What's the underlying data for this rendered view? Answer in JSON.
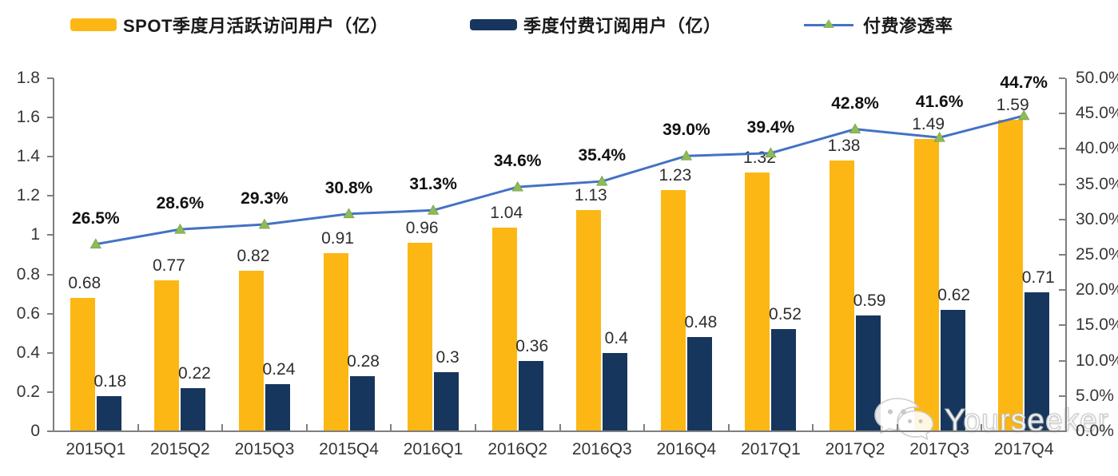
{
  "legend": {
    "items": [
      {
        "label": "SPOT季度月活跃访问用户（亿）",
        "swatch_color": "#FCB714"
      },
      {
        "label": "季度付费订阅用户（亿）",
        "swatch_color": "#17365D"
      },
      {
        "label": "付费渗透率",
        "line_color": "#4472C4",
        "marker_color": "#8FBA58"
      }
    ]
  },
  "watermark": {
    "text": "Yourseeker",
    "icon": "wechat-icon"
  },
  "chart_data": {
    "type": "combo (grouped bar + line)",
    "title": "",
    "legend_position": "top",
    "grid": "off",
    "categories": [
      "2015Q1",
      "2015Q2",
      "2015Q3",
      "2015Q4",
      "2016Q1",
      "2016Q2",
      "2016Q3",
      "2016Q4",
      "2017Q1",
      "2017Q2",
      "2017Q3",
      "2017Q4"
    ],
    "series": [
      {
        "name": "SPOT季度月活跃访问用户（亿）",
        "type": "bar",
        "axis": "left",
        "color": "#FCB714",
        "values": [
          0.68,
          0.77,
          0.82,
          0.91,
          0.96,
          1.04,
          1.13,
          1.23,
          1.32,
          1.38,
          1.49,
          1.59
        ],
        "labels": [
          "0.68",
          "0.77",
          "0.82",
          "0.91",
          "0.96",
          "1.04",
          "1.13",
          "1.23",
          "1.32",
          "1.38",
          "1.49",
          "1.59"
        ]
      },
      {
        "name": "季度付费订阅用户（亿）",
        "type": "bar",
        "axis": "left",
        "color": "#17365D",
        "values": [
          0.18,
          0.22,
          0.24,
          0.28,
          0.3,
          0.36,
          0.4,
          0.48,
          0.52,
          0.59,
          0.62,
          0.71
        ],
        "labels": [
          "0.18",
          "0.22",
          "0.24",
          "0.28",
          "0.3",
          "0.36",
          "0.4",
          "0.48",
          "0.52",
          "0.59",
          "0.62",
          "0.71"
        ]
      },
      {
        "name": "付费渗透率",
        "type": "line",
        "axis": "right",
        "color": "#4472C4",
        "marker": "triangle",
        "marker_color": "#8FBA58",
        "values": [
          26.5,
          28.6,
          29.3,
          30.8,
          31.3,
          34.6,
          35.4,
          39.0,
          39.4,
          42.8,
          41.6,
          44.7
        ],
        "labels": [
          "26.5%",
          "28.6%",
          "29.3%",
          "30.8%",
          "31.3%",
          "34.6%",
          "35.4%",
          "39.0%",
          "39.4%",
          "42.8%",
          "41.6%",
          "44.7%"
        ]
      }
    ],
    "left_axis": {
      "min": 0,
      "max": 1.8,
      "step": 0.2,
      "ticks": [
        "0",
        "0.2",
        "0.4",
        "0.6",
        "0.8",
        "1",
        "1.2",
        "1.4",
        "1.6",
        "1.8"
      ]
    },
    "right_axis": {
      "min": 0,
      "max": 50,
      "step": 5,
      "ticks": [
        "0.0%",
        "5.0%",
        "10.0%",
        "15.0%",
        "20.0%",
        "25.0%",
        "30.0%",
        "35.0%",
        "40.0%",
        "45.0%",
        "50.0%"
      ]
    }
  }
}
